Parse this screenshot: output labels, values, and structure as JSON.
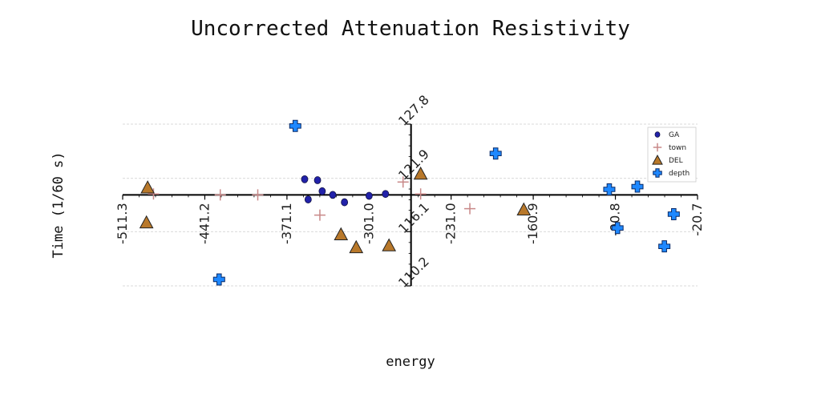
{
  "chart_data": {
    "type": "scatter",
    "title": "Uncorrected Attenuation Resistivity",
    "xlabel": "energy",
    "ylabel": "Time (1/60 s)",
    "xlim": [
      -511.3,
      -20.7
    ],
    "ylim": [
      110.2,
      127.8
    ],
    "x_ticks": [
      "-511.3",
      "-441.2",
      "-371.1",
      "-301.0",
      "-231.0",
      "-160.9",
      "-90.8",
      "-20.7"
    ],
    "y_ticks": [
      "110.2",
      "116.1",
      "121.9",
      "127.8"
    ],
    "axis_crossing": {
      "x_axis_at_y": 120.1,
      "y_axis_at_x": -265.2
    },
    "grid": "horizontal dashed",
    "legend": {
      "position": "top-right"
    },
    "series": [
      {
        "name": "GA",
        "marker": "circle",
        "color": "#2222aa",
        "points": [
          [
            -356.0,
            121.8
          ],
          [
            -353.0,
            119.6
          ],
          [
            -345.0,
            121.7
          ],
          [
            -341.0,
            120.5
          ],
          [
            -332.0,
            120.1
          ],
          [
            -322.0,
            119.3
          ],
          [
            -301.0,
            120.0
          ],
          [
            -287.0,
            120.2
          ]
        ]
      },
      {
        "name": "town",
        "marker": "plus",
        "color": "#c88888",
        "points": [
          [
            -485.0,
            120.2
          ],
          [
            -428.0,
            120.1
          ],
          [
            -396.0,
            120.1
          ],
          [
            -343.0,
            117.9
          ],
          [
            -272.0,
            121.5
          ],
          [
            -257.0,
            120.2
          ],
          [
            -215.0,
            118.6
          ]
        ]
      },
      {
        "name": "DEL",
        "marker": "triangle",
        "color": "#b8782a",
        "points": [
          [
            -490.0,
            120.9
          ],
          [
            -491.0,
            117.1
          ],
          [
            -325.0,
            115.8
          ],
          [
            -312.0,
            114.4
          ],
          [
            -284.0,
            114.6
          ],
          [
            -257.0,
            122.4
          ],
          [
            -169.0,
            118.5
          ]
        ]
      },
      {
        "name": "depth",
        "marker": "cross",
        "color": "#1e88ff",
        "points": [
          [
            -364.0,
            127.6
          ],
          [
            -193.0,
            124.6
          ],
          [
            -429.0,
            110.9
          ],
          [
            -96.0,
            120.7
          ],
          [
            -72.0,
            121.0
          ],
          [
            -89.0,
            116.5
          ],
          [
            -41.0,
            118.0
          ],
          [
            -49.0,
            114.5
          ]
        ]
      }
    ]
  }
}
